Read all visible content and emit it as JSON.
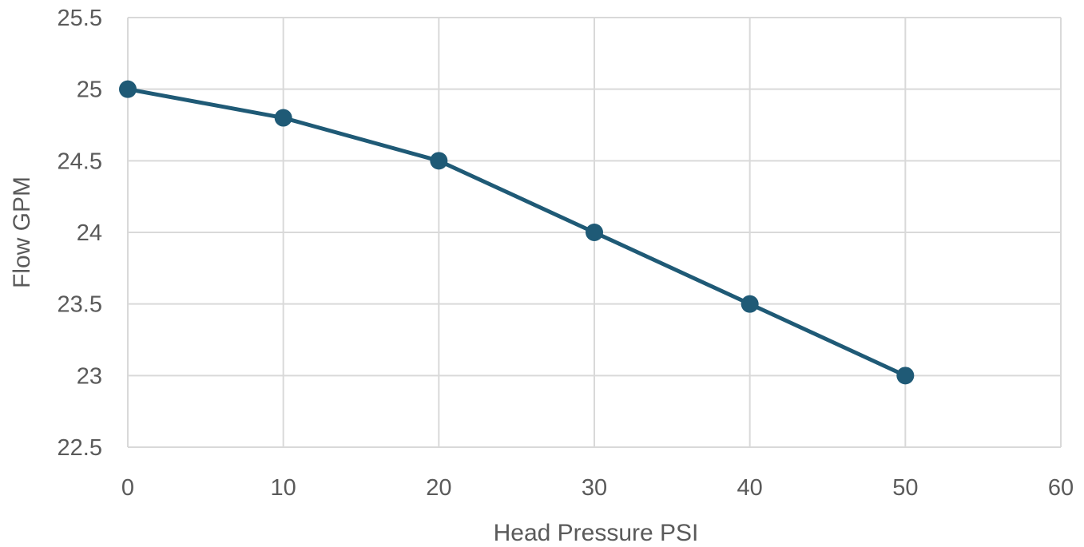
{
  "chart_data": {
    "type": "line",
    "title": "",
    "xlabel": "Head Pressure PSI",
    "ylabel": "Flow GPM",
    "xlim": [
      0,
      60
    ],
    "ylim": [
      22.5,
      25.5
    ],
    "x_ticks": [
      0,
      10,
      20,
      30,
      40,
      50,
      60
    ],
    "x_tick_labels": [
      "0",
      "10",
      "20",
      "30",
      "40",
      "50",
      "60"
    ],
    "y_ticks": [
      22.5,
      23,
      23.5,
      24,
      24.5,
      25,
      25.5
    ],
    "y_tick_labels": [
      "22.5",
      "23",
      "23.5",
      "24",
      "24.5",
      "25",
      "25.5"
    ],
    "grid": true,
    "legend": "none",
    "series": [
      {
        "x": [
          0,
          10,
          20,
          30,
          40,
          50
        ],
        "y": [
          25,
          24.8,
          24.5,
          24,
          23.5,
          23
        ],
        "color": "#1f5a76",
        "marker": "circle"
      }
    ],
    "colors": {
      "grid": "#d9d9d9",
      "text": "#5a5a5a",
      "line": "#1f5a76"
    }
  }
}
